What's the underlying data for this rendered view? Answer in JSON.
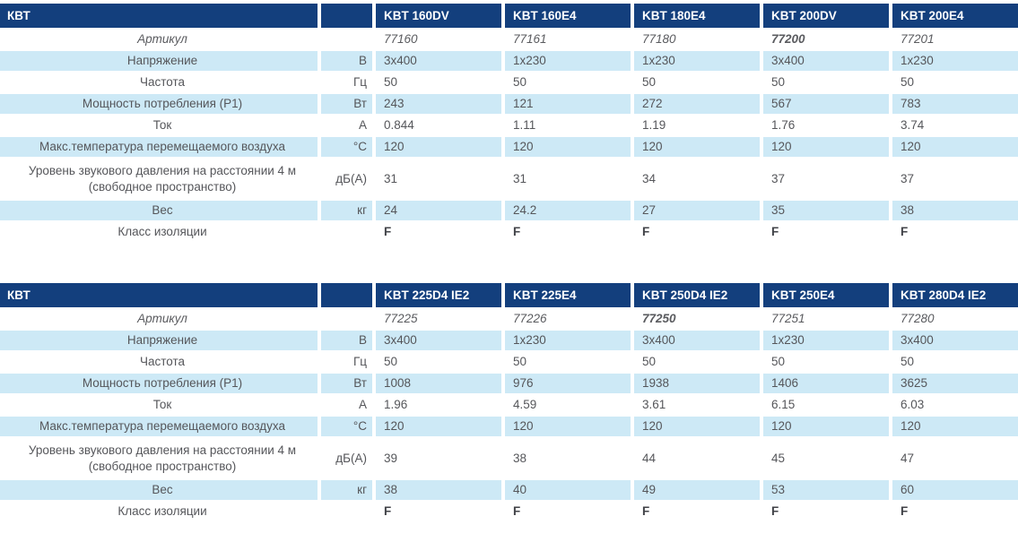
{
  "colors": {
    "header_bg": "#133f7d",
    "header_text": "#ffffff",
    "row_alt_bg": "#cde9f6",
    "body_text": "#55565a",
    "article_text": "#5a5b5f",
    "class_text": "#404247"
  },
  "tables": [
    {
      "title": "КВТ",
      "unit_header": "",
      "models": [
        "KBT 160DV",
        "KBT 160E4",
        "KBT 180E4",
        "KBT 200DV",
        "KBT 200E4"
      ],
      "rows": [
        {
          "label_lines": [
            "Артикул"
          ],
          "unit": "",
          "values": [
            "77160",
            "77161",
            "77180",
            "77200",
            "77201"
          ],
          "italic": true,
          "bold_value_indexes": [
            3
          ]
        },
        {
          "label_lines": [
            "Напряжение"
          ],
          "unit": "В",
          "values": [
            "3x400",
            "1x230",
            "1x230",
            "3x400",
            "1x230"
          ]
        },
        {
          "label_lines": [
            "Частота"
          ],
          "unit": "Гц",
          "values": [
            "50",
            "50",
            "50",
            "50",
            "50"
          ]
        },
        {
          "label_lines": [
            "Мощность потребления (P1)"
          ],
          "unit": "Вт",
          "values": [
            "243",
            "121",
            "272",
            "567",
            "783"
          ]
        },
        {
          "label_lines": [
            "Ток"
          ],
          "unit": "А",
          "values": [
            "0.844",
            "1.11",
            "1.19",
            "1.76",
            "3.74"
          ]
        },
        {
          "label_lines": [
            "Макс.температура перемещаемого воздуха"
          ],
          "unit": "°C",
          "values": [
            "120",
            "120",
            "120",
            "120",
            "120"
          ]
        },
        {
          "label_lines": [
            "Уровень звукового давления на расстоянии 4 м",
            "(свободное пространство)"
          ],
          "unit": "дБ(А)",
          "values": [
            "31",
            "31",
            "34",
            "37",
            "37"
          ],
          "tall": true
        },
        {
          "label_lines": [
            "Вес"
          ],
          "unit": "кг",
          "values": [
            "24",
            "24.2",
            "27",
            "35",
            "38"
          ]
        },
        {
          "label_lines": [
            "Класс изоляции"
          ],
          "unit": "",
          "values": [
            "F",
            "F",
            "F",
            "F",
            "F"
          ],
          "strong": true
        }
      ]
    },
    {
      "title": "КВТ",
      "unit_header": "",
      "models": [
        "KBT 225D4 IE2",
        "KBT 225E4",
        "KBT 250D4 IE2",
        "KBT 250E4",
        "KBT 280D4 IE2"
      ],
      "rows": [
        {
          "label_lines": [
            "Артикул"
          ],
          "unit": "",
          "values": [
            "77225",
            "77226",
            "77250",
            "77251",
            "77280"
          ],
          "italic": true,
          "bold_value_indexes": [
            2
          ]
        },
        {
          "label_lines": [
            "Напряжение"
          ],
          "unit": "В",
          "values": [
            "3x400",
            "1x230",
            "3x400",
            "1x230",
            "3x400"
          ]
        },
        {
          "label_lines": [
            "Частота"
          ],
          "unit": "Гц",
          "values": [
            "50",
            "50",
            "50",
            "50",
            "50"
          ]
        },
        {
          "label_lines": [
            "Мощность потребления (P1)"
          ],
          "unit": "Вт",
          "values": [
            "1008",
            "976",
            "1938",
            "1406",
            "3625"
          ]
        },
        {
          "label_lines": [
            "Ток"
          ],
          "unit": "А",
          "values": [
            "1.96",
            "4.59",
            "3.61",
            "6.15",
            "6.03"
          ]
        },
        {
          "label_lines": [
            "Макс.температура перемещаемого воздуха"
          ],
          "unit": "°C",
          "values": [
            "120",
            "120",
            "120",
            "120",
            "120"
          ]
        },
        {
          "label_lines": [
            "Уровень звукового давления на расстоянии 4 м",
            "(свободное пространство)"
          ],
          "unit": "дБ(А)",
          "values": [
            "39",
            "38",
            "44",
            "45",
            "47"
          ],
          "tall": true
        },
        {
          "label_lines": [
            "Вес"
          ],
          "unit": "кг",
          "values": [
            "38",
            "40",
            "49",
            "53",
            "60"
          ]
        },
        {
          "label_lines": [
            "Класс изоляции"
          ],
          "unit": "",
          "values": [
            "F",
            "F",
            "F",
            "F",
            "F"
          ],
          "strong": true
        }
      ]
    }
  ]
}
